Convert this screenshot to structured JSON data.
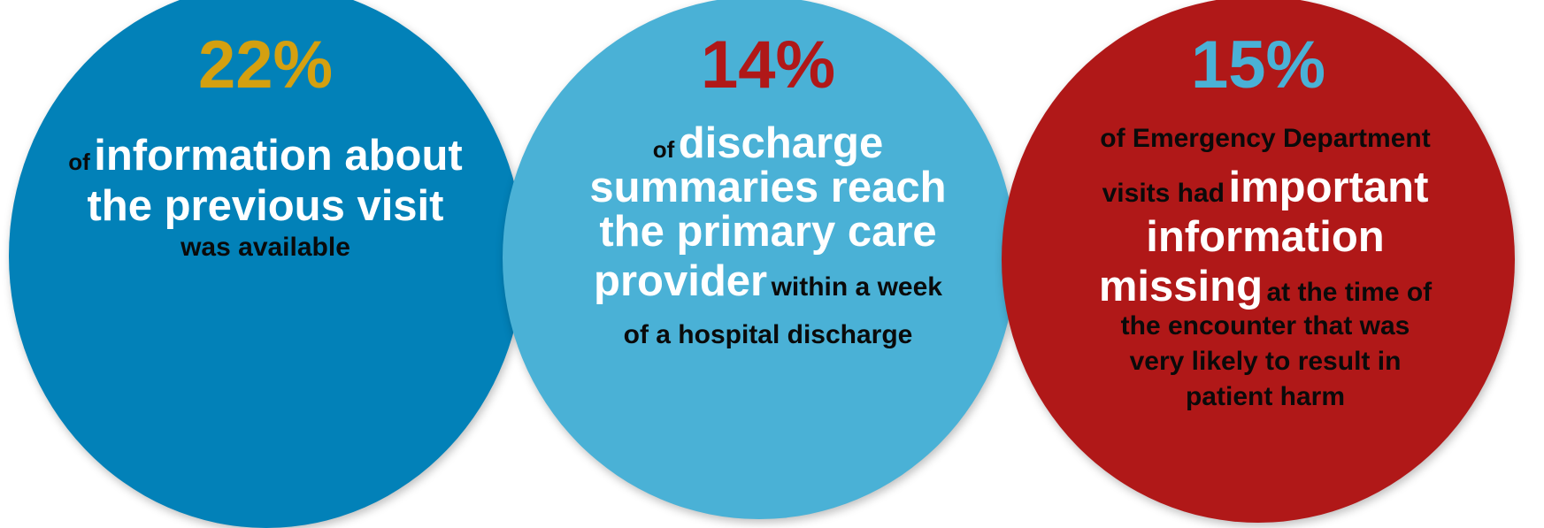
{
  "colors": {
    "circle_1": "#0281b8",
    "circle_2": "#4ab1d6",
    "circle_3": "#b01818",
    "pct_1": "#d4a010",
    "pct_2": "#b01818",
    "pct_3": "#4ab1d6"
  },
  "stats": [
    {
      "percent": "22%",
      "line1_small": "of",
      "line1_big": "information about",
      "line2_big": "the previous visit",
      "line3_small": "was available"
    },
    {
      "percent": "14%",
      "line1_small": "of",
      "line1_big": "discharge",
      "line2_big": "summaries reach",
      "line3_big": "the primary care",
      "line4_big": "provider",
      "line4_small": "within a week",
      "line5_small": "of a hospital discharge"
    },
    {
      "percent": "15%",
      "line1_small": "of Emergency Department",
      "line2_small": "visits had",
      "line2_big": "important",
      "line3_big": "information",
      "line4_big": "missing",
      "line4_small": "at the time of",
      "line5_small": "the encounter that was",
      "line6_small": "very likely to result in",
      "line7_small": "patient harm"
    }
  ]
}
